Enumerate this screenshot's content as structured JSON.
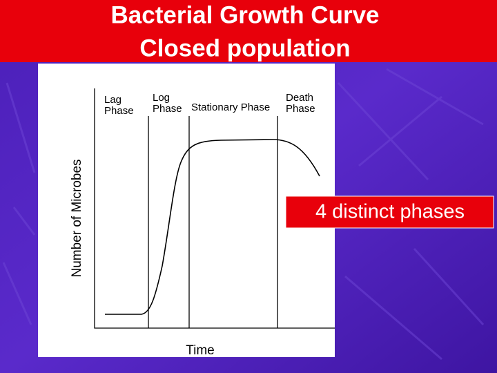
{
  "slide": {
    "title": [
      "Bacterial Growth Curve",
      "Closed population"
    ],
    "figure": {
      "phases": [
        [
          "Lag",
          "Phase"
        ],
        [
          "Log",
          "Phase"
        ],
        [
          "Stationary Phase"
        ],
        [
          "Death",
          "Phase"
        ]
      ],
      "y_label": "Number of Microbes",
      "x_label": "Time"
    },
    "callout": "4 distinct phases"
  }
}
